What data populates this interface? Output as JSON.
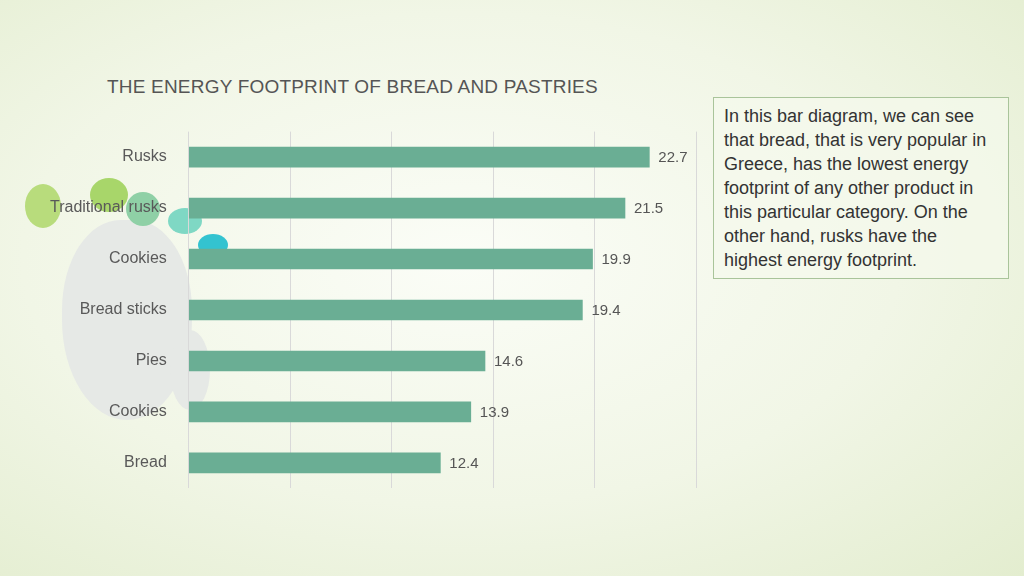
{
  "chart_data": {
    "type": "bar",
    "orientation": "horizontal",
    "title": "THE ENERGY FOOTPRINT OF BREAD AND PASTRIES",
    "categories": [
      "Rusks",
      "Traditional rusks",
      "Cookies",
      "Bread sticks",
      "Pies",
      "Cookies",
      "Bread"
    ],
    "values": [
      22.7,
      21.5,
      19.9,
      19.4,
      14.6,
      13.9,
      12.4
    ],
    "color": "#6aae94",
    "xlim": [
      0,
      25
    ],
    "xticks": [
      0,
      5,
      10,
      15,
      20,
      25
    ],
    "grid": true,
    "data_labels": true,
    "tick_labels": "y",
    "annotation": "In this bar diagram, we can see that bread, that is very popular in Greece, has the lowest energy footprint of any other product in this particular category. On the other hand, rusks have the highest energy footprint."
  }
}
